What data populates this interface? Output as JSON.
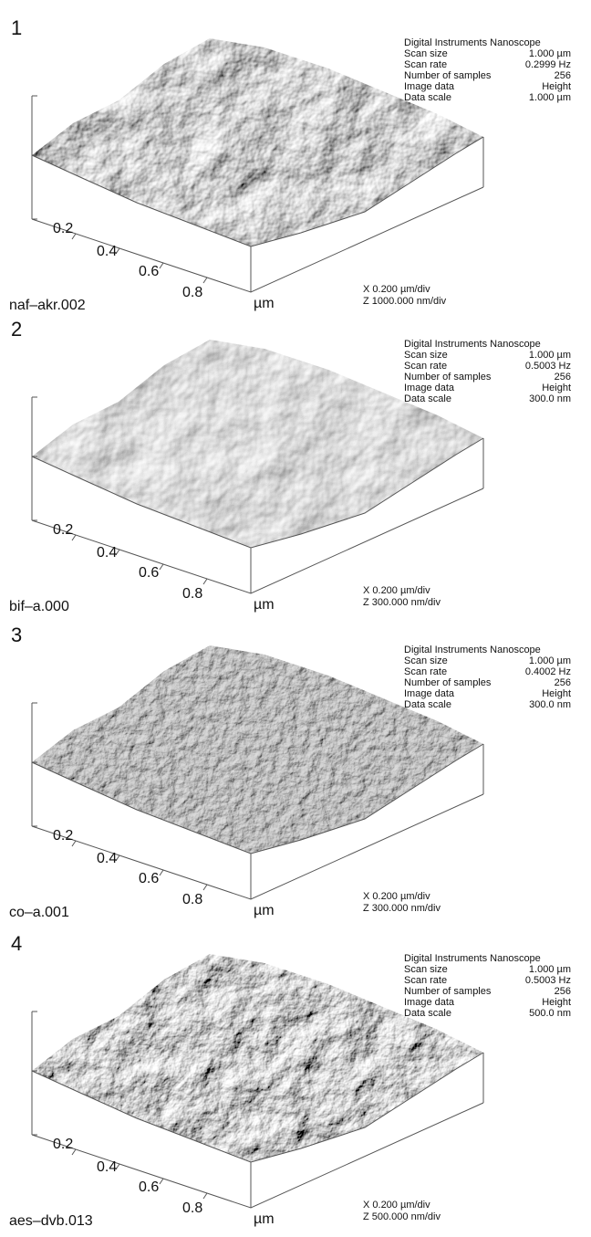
{
  "panels": [
    {
      "number": "1",
      "header": "Digital Instruments Nanoscope",
      "info": [
        [
          "Scan size",
          "1.000 µm"
        ],
        [
          "Scan rate",
          "0.2999 Hz"
        ],
        [
          "Number of samples",
          "256"
        ],
        [
          "Image data",
          "Height"
        ],
        [
          "Data scale",
          "1.000 µm"
        ]
      ],
      "axis_labels": [
        "0.2",
        "0.4",
        "0.6",
        "0.8"
      ],
      "unit": "µm",
      "filename": "naf–akr.002",
      "x_scale": "X  0.200 µm/div",
      "z_scale": "Z  1000.000 nm/div"
    },
    {
      "number": "2",
      "header": "Digital Instruments Nanoscope",
      "info": [
        [
          "Scan size",
          "1.000 µm"
        ],
        [
          "Scan rate",
          "0.5003 Hz"
        ],
        [
          "Number of samples",
          "256"
        ],
        [
          "Image data",
          "Height"
        ],
        [
          "Data scale",
          "300.0 nm"
        ]
      ],
      "axis_labels": [
        "0.2",
        "0.4",
        "0.6",
        "0.8"
      ],
      "unit": "µm",
      "filename": "bif–a.000",
      "x_scale": "X  0.200 µm/div",
      "z_scale": "Z  300.000 nm/div"
    },
    {
      "number": "3",
      "header": "Digital Instruments Nanoscope",
      "info": [
        [
          "Scan size",
          "1.000 µm"
        ],
        [
          "Scan rate",
          "0.4002 Hz"
        ],
        [
          "Number of samples",
          "256"
        ],
        [
          "Image data",
          "Height"
        ],
        [
          "Data scale",
          "300.0 nm"
        ]
      ],
      "axis_labels": [
        "0.2",
        "0.4",
        "0.6",
        "0.8"
      ],
      "unit": "µm",
      "filename": "co–a.001",
      "x_scale": "X  0.200 µm/div",
      "z_scale": "Z  300.000 nm/div"
    },
    {
      "number": "4",
      "header": "Digital Instruments Nanoscope",
      "info": [
        [
          "Scan size",
          "1.000 µm"
        ],
        [
          "Scan rate",
          "0.5003 Hz"
        ],
        [
          "Number of samples",
          "256"
        ],
        [
          "Image data",
          "Height"
        ],
        [
          "Data scale",
          "500.0 nm"
        ]
      ],
      "axis_labels": [
        "0.2",
        "0.4",
        "0.6",
        "0.8"
      ],
      "unit": "µm",
      "filename": "aes–dvb.013",
      "x_scale": "X  0.200 µm/div",
      "z_scale": "Z  500.000 nm/div"
    }
  ]
}
